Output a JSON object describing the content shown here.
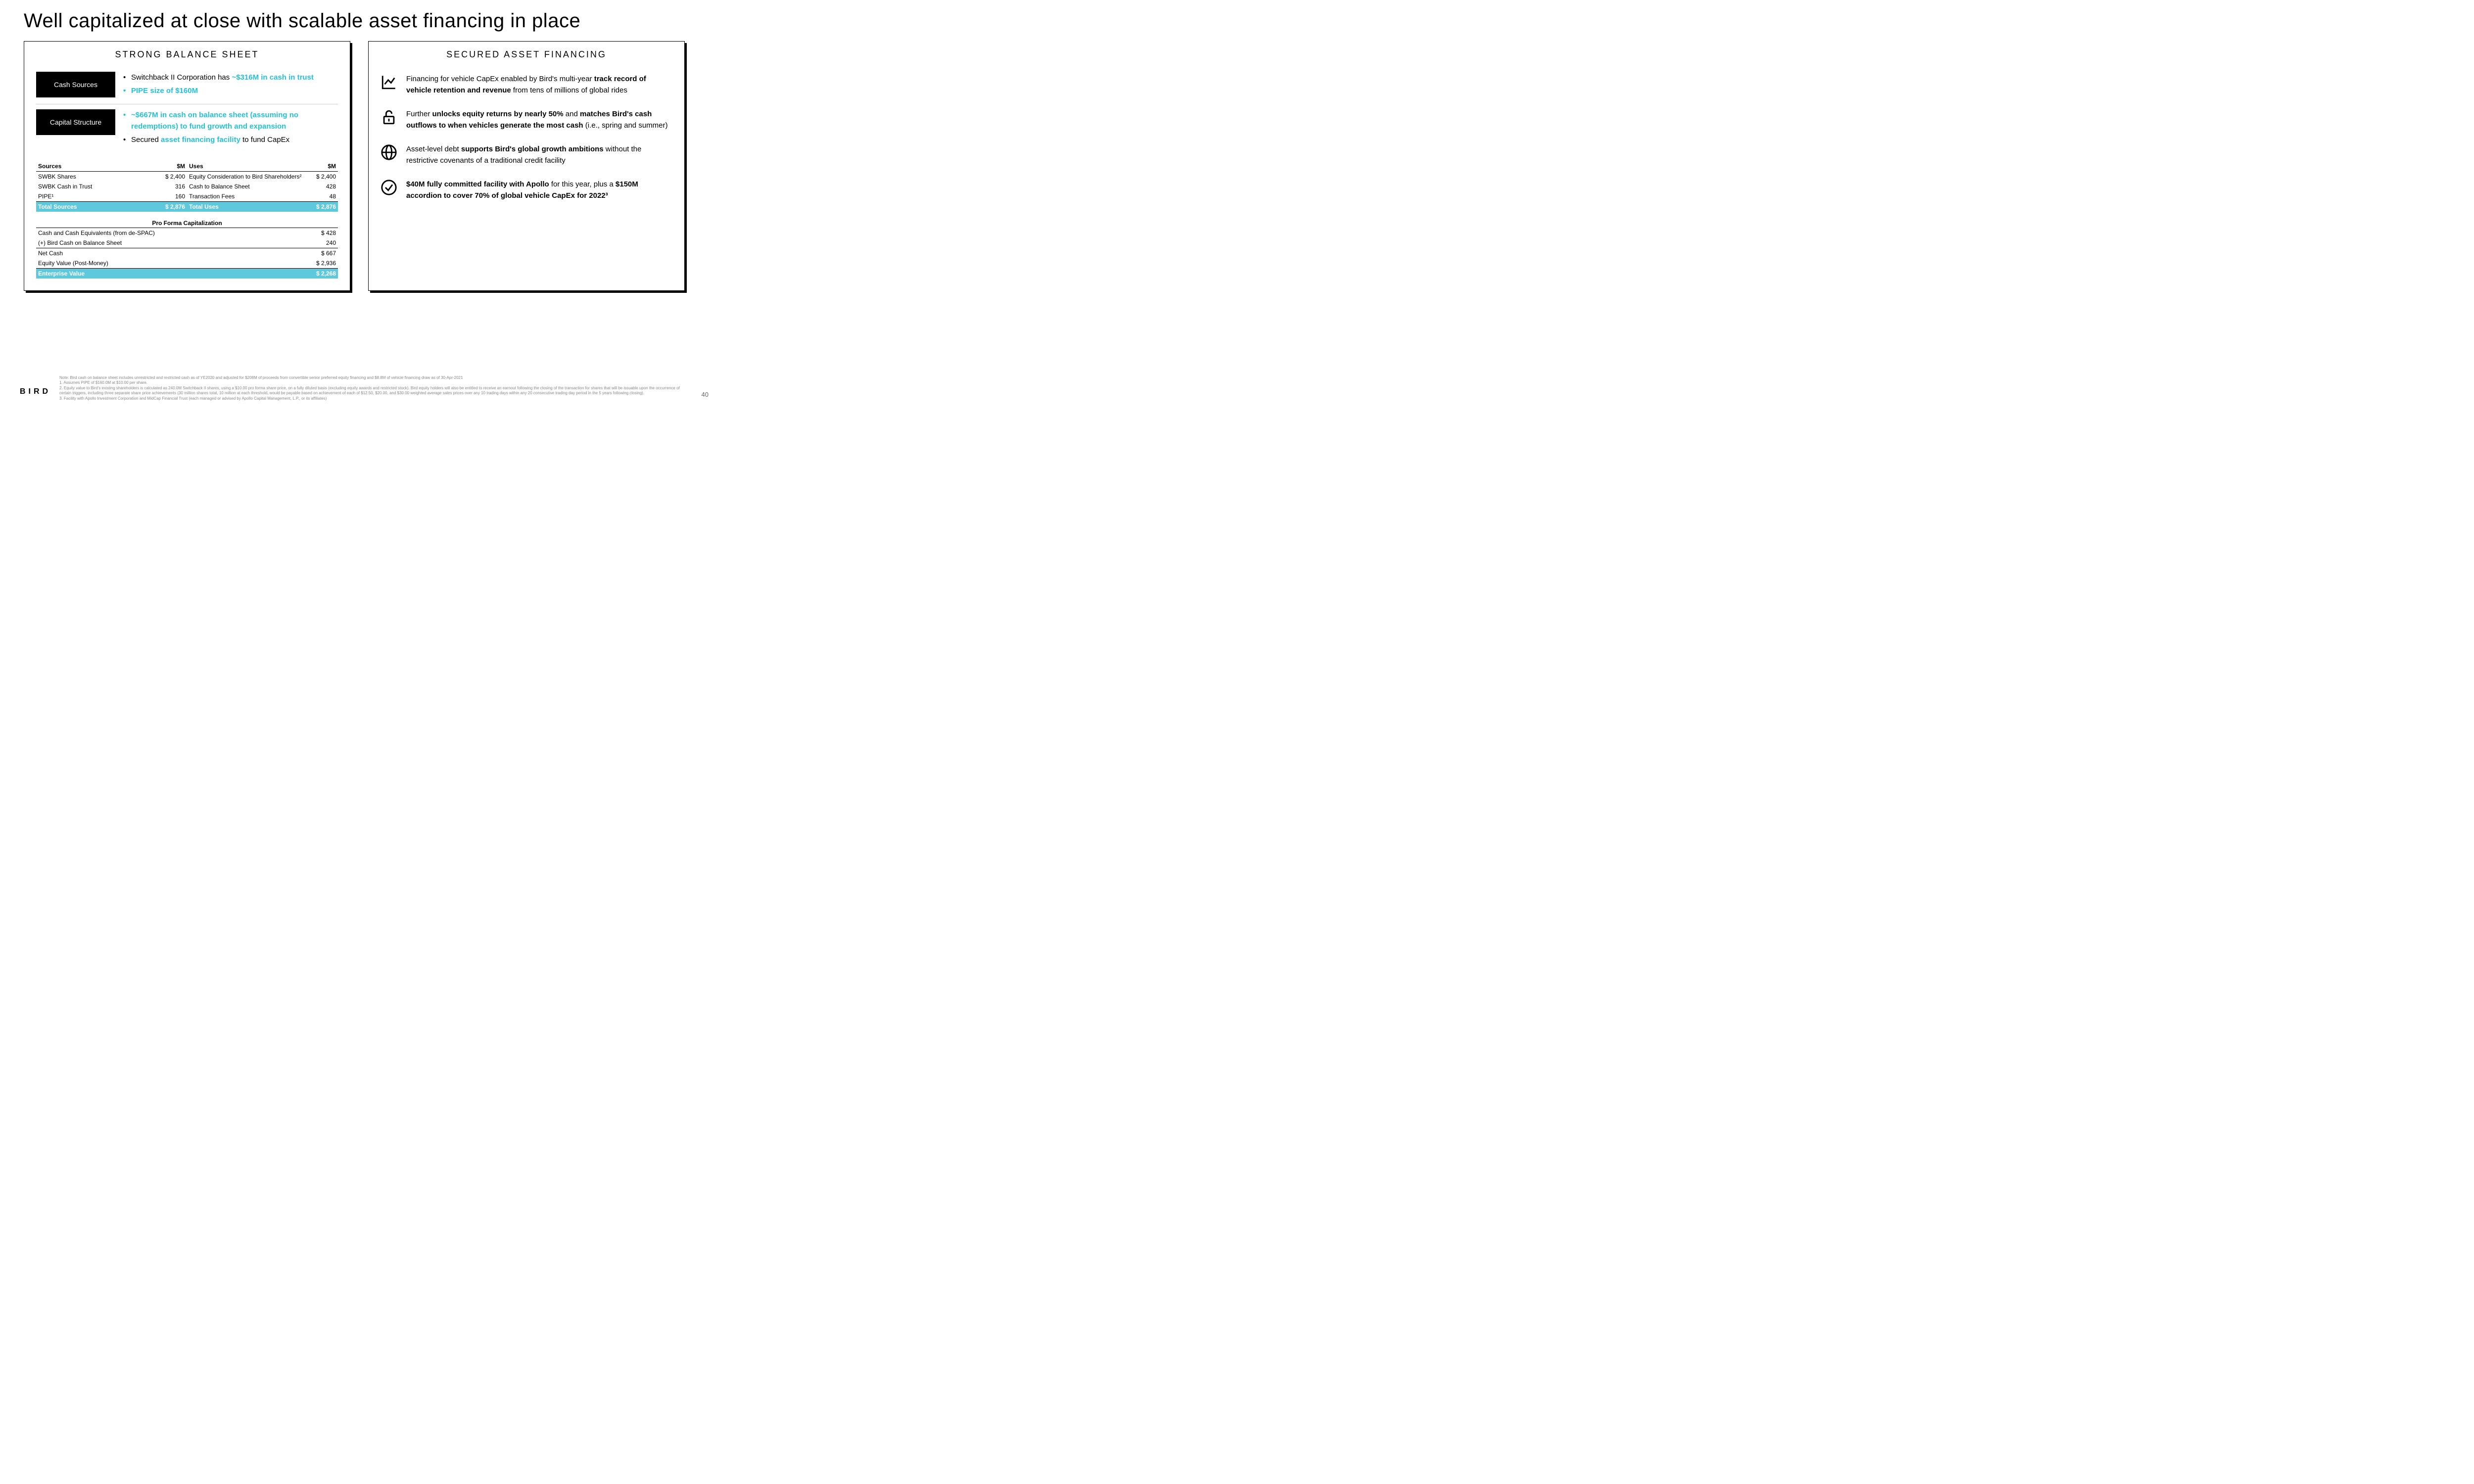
{
  "colors": {
    "accent": "#26c1d6",
    "total_row_bg": "#5ec9dc",
    "total_row_fg": "#ffffff",
    "panel_shadow": "#000000",
    "notes_color": "#888888"
  },
  "title": "Well capitalized at close with scalable asset financing in place",
  "left": {
    "heading": "STRONG BALANCE SHEET",
    "blocks": [
      {
        "tag": "Cash Sources",
        "items": [
          {
            "pre": "Switchback II Corporation has ",
            "accent": "~$316M in cash in trust",
            "post": ""
          },
          {
            "all_accent": true,
            "text": "PIPE size of $160M"
          }
        ]
      },
      {
        "tag": "Capital Structure",
        "items": [
          {
            "pre": "",
            "accent": "~$667M in cash",
            "post": " on balance sheet (assuming no redemptions) to fund growth and expansion",
            "accent_bullet": true
          },
          {
            "pre": "Secured ",
            "accent": "asset financing facility",
            "post": " to fund CapEx"
          }
        ]
      }
    ],
    "sources_uses": {
      "sources": {
        "head_label": "Sources",
        "head_unit": "$M",
        "rows": [
          {
            "label": "SWBK Shares",
            "val": "$ 2,400"
          },
          {
            "label": "SWBK Cash in Trust",
            "val": "316"
          },
          {
            "label": "PIPE¹",
            "val": "160"
          }
        ],
        "total": {
          "label": "Total Sources",
          "val": "$ 2,876"
        }
      },
      "uses": {
        "head_label": "Uses",
        "head_unit": "$M",
        "rows": [
          {
            "label": "Equity Consideration to Bird Shareholders²",
            "val": "$ 2,400"
          },
          {
            "label": "Cash to Balance Sheet",
            "val": "428"
          },
          {
            "label": "Transaction Fees",
            "val": "48"
          }
        ],
        "total": {
          "label": "Total Uses",
          "val": "$ 2,876"
        }
      }
    },
    "cap": {
      "heading": "Pro Forma Capitalization",
      "rows": [
        {
          "label": "Cash and Cash Equivalents (from de-SPAC)",
          "val": "$ 428",
          "rule": false
        },
        {
          "label": "(+) Bird Cash on Balance Sheet",
          "val": "240",
          "rule": true
        },
        {
          "label": "Net Cash",
          "val": "$ 667",
          "rule": false
        },
        {
          "label": "Equity Value (Post-Money)",
          "val": "$ 2,936",
          "rule": true
        }
      ],
      "total": {
        "label": "Enterprise Value",
        "val": "$ 2,268"
      }
    }
  },
  "right": {
    "heading": "SECURED ASSET FINANCING",
    "items": [
      {
        "icon": "chart",
        "html": "Financing for vehicle CapEx enabled by Bird's multi-year <b>track record of vehicle retention and revenue</b> from tens of millions of global rides"
      },
      {
        "icon": "unlock",
        "html": "Further <b>unlocks equity returns by nearly 50%</b> and <b>matches Bird's cash outflows to when vehicles generate the most cash</b> (i.e., spring and summer)"
      },
      {
        "icon": "globe",
        "html": "Asset-level debt <b>supports Bird's global growth ambitions</b> without the restrictive covenants of a traditional credit facility"
      },
      {
        "icon": "check",
        "html": "<b>$40M fully committed facility with Apollo</b> for this year, plus a <b>$150M accordion to cover 70% of global vehicle CapEx for 2022³</b>"
      }
    ]
  },
  "footer": {
    "logo": "BIRD",
    "page": "40",
    "notes": [
      "Note: Bird cash on balance sheet includes unrestricted and restricted cash as of YE2020 and adjusted for $208M of proceeds from convertible senior preferred equity financing and $8.8M of vehicle financing draw as of 30-Apr-2021",
      "1. Assumes PIPE of $160.0M at $10.00 per share.",
      "2. Equity value to Bird's existing shareholders is calculated as 240.0M Switchback II shares, using a $10.00 pro forma share price, on a fully diluted basis (excluding equity awards and restricted stock). Bird equity holders will also be entitled to receive an earnout following the closing of the transaction for shares that will be issuable upon the occurrence of certain triggers, including three separate share price achievements (30 million shares total, 10 million at each threshold, would be payable based on achievement of each of $12.50, $20.00, and $30.00 weighted average sales prices over any 10 trading days within any 20 consecutive trading day period in the 5 years following closing).",
      "3. Facility with Apollo Investment Corporation and MidCap Financial Trust (each managed or advised by Apollo Capital Management, L.P., or its affiliates)"
    ]
  }
}
